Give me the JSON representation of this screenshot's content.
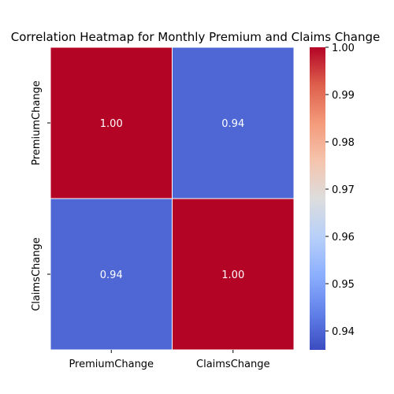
{
  "chart_data": {
    "type": "heatmap",
    "title": "Correlation Heatmap for Monthly Premium and Claims Change",
    "x_categories": [
      "PremiumChange",
      "ClaimsChange"
    ],
    "y_categories": [
      "PremiumChange",
      "ClaimsChange"
    ],
    "matrix": [
      [
        1.0,
        0.94
      ],
      [
        0.94,
        1.0
      ]
    ],
    "annotations": [
      [
        "1.00",
        "0.94"
      ],
      [
        "0.94",
        "1.00"
      ]
    ],
    "colormap": "coolwarm",
    "color_range": [
      0.936,
      1.0
    ],
    "low_color": "#3b4cc0",
    "high_color": "#b40426",
    "annotation_color": "#ffffff",
    "colorbar_ticks": [
      "0.94",
      "0.95",
      "0.96",
      "0.97",
      "0.98",
      "0.99",
      "1.00"
    ],
    "colorbar_tick_values": [
      0.94,
      0.95,
      0.96,
      0.97,
      0.98,
      0.99,
      1.0
    ],
    "legend": "colorbar-right"
  }
}
